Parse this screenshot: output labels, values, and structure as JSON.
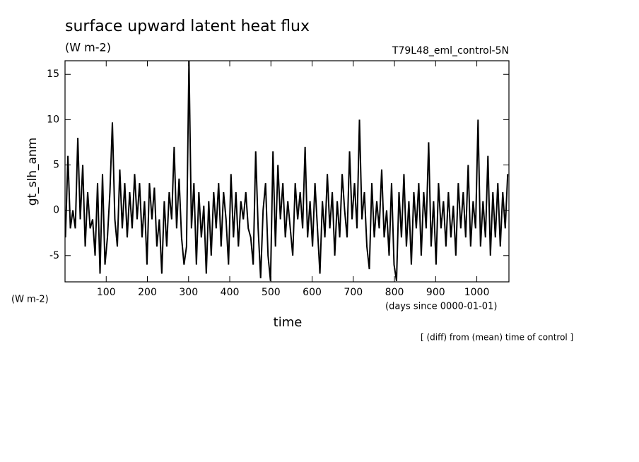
{
  "chart_data": {
    "type": "line",
    "title": "surface upward latent heat flux",
    "units": "(W m-2)",
    "run": "T79L48_eml_control-5N",
    "ylabel": "gt_slh_anm",
    "y_units": "(W m-2)",
    "x_units": "(days since 0000-01-01)",
    "xlabel": "time",
    "note": "[ (diff) from (mean) time of control ]",
    "color": "#000000",
    "xlim": [
      0,
      1078
    ],
    "ylim": [
      -7.9,
      16.5
    ],
    "xticks": [
      100,
      200,
      300,
      400,
      500,
      600,
      700,
      800,
      900,
      1000
    ],
    "yticks": [
      -5,
      0,
      5,
      10,
      15
    ],
    "x": [
      1,
      7,
      13,
      19,
      25,
      31,
      37,
      43,
      49,
      55,
      61,
      67,
      73,
      79,
      85,
      91,
      97,
      103,
      109,
      115,
      121,
      127,
      133,
      139,
      145,
      151,
      157,
      163,
      169,
      175,
      181,
      187,
      193,
      199,
      205,
      211,
      217,
      223,
      229,
      235,
      241,
      247,
      253,
      259,
      265,
      271,
      277,
      283,
      289,
      295,
      301,
      307,
      313,
      319,
      325,
      331,
      337,
      343,
      349,
      355,
      361,
      367,
      373,
      379,
      385,
      391,
      397,
      403,
      409,
      415,
      421,
      427,
      433,
      439,
      445,
      451,
      457,
      463,
      469,
      475,
      481,
      487,
      493,
      499,
      505,
      511,
      517,
      523,
      529,
      535,
      541,
      547,
      553,
      559,
      565,
      571,
      577,
      583,
      589,
      595,
      601,
      607,
      613,
      619,
      625,
      631,
      637,
      643,
      649,
      655,
      661,
      667,
      673,
      679,
      685,
      691,
      697,
      703,
      709,
      715,
      721,
      727,
      733,
      739,
      745,
      751,
      757,
      763,
      769,
      775,
      781,
      787,
      793,
      799,
      805,
      811,
      817,
      823,
      829,
      835,
      841,
      847,
      853,
      859,
      865,
      871,
      877,
      883,
      889,
      895,
      901,
      907,
      913,
      919,
      925,
      931,
      937,
      943,
      949,
      955,
      961,
      967,
      973,
      979,
      985,
      991,
      997,
      1003,
      1009,
      1015,
      1021,
      1027,
      1033,
      1039,
      1045,
      1051,
      1057,
      1063,
      1069,
      1075
    ],
    "values": [
      -3,
      6,
      -2,
      0,
      -2,
      8,
      -1,
      5,
      -4,
      2,
      -2,
      -1,
      -5,
      3,
      -7,
      4,
      -6,
      -3,
      2,
      9.7,
      -1,
      -4,
      4.5,
      -2,
      3,
      -3,
      2,
      -2,
      4,
      -1,
      3,
      -3,
      1,
      -6,
      3,
      -1,
      2.5,
      -4,
      -1,
      -7,
      1,
      -4,
      2,
      -1,
      7,
      -2,
      3.5,
      -3,
      -6,
      -4,
      16.5,
      -2,
      3,
      -6,
      2,
      -3,
      0.5,
      -7,
      1,
      -5,
      2,
      -2,
      3,
      -4,
      2,
      -1,
      -6,
      4,
      -3,
      2,
      -4,
      1,
      -1,
      2,
      -2,
      -3,
      -6,
      6.5,
      -2,
      -7.5,
      0,
      3,
      -5,
      -7.8,
      6.5,
      -4,
      5,
      -1,
      3,
      -3,
      1,
      -2,
      -5,
      3,
      -1,
      2,
      -2,
      7,
      -3,
      1,
      -4,
      3,
      -2,
      -7,
      1,
      -3,
      4,
      -2,
      2,
      -5,
      1,
      -3,
      4,
      0,
      -3,
      6.5,
      -1,
      3,
      -2,
      10,
      -1,
      2,
      -4,
      -6.5,
      3,
      -3,
      1,
      -2,
      4.5,
      -3,
      0,
      -5,
      3,
      -6,
      -7.8,
      2,
      -3,
      4,
      -4,
      1,
      -6,
      2,
      -2,
      3,
      -5,
      2,
      -2,
      7.5,
      -4,
      1,
      -6,
      3,
      -2,
      1,
      -4,
      2,
      -3,
      0.5,
      -5,
      3,
      -2,
      2,
      -3,
      5,
      -4,
      1,
      -2,
      10,
      -4,
      1,
      -3,
      6,
      -5,
      2,
      -3,
      3,
      -4,
      2,
      -2,
      4
    ]
  }
}
